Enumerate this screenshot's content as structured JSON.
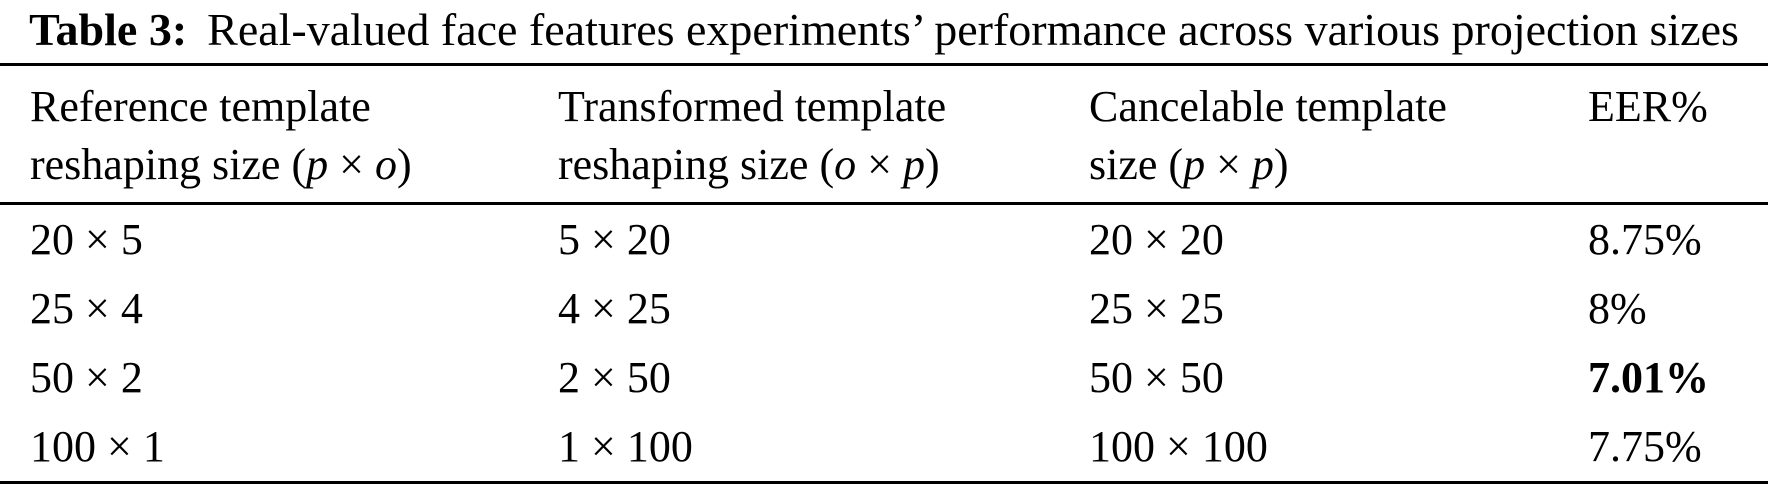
{
  "colors": {
    "text": "#000000",
    "background": "#ffffff",
    "rule": "#000000"
  },
  "caption": {
    "label": "Table 3:",
    "text": "Real-valued face features experiments’ performance across various projection sizes"
  },
  "table": {
    "headers": [
      {
        "line1": "Reference template",
        "line2_pre": "reshaping size (",
        "var1": "p",
        "op": " × ",
        "var2": "o",
        "line2_post": ")"
      },
      {
        "line1": "Transformed template",
        "line2_pre": "reshaping size (",
        "var1": "o",
        "op": " × ",
        "var2": "p",
        "line2_post": ")"
      },
      {
        "line1": "Cancelable template",
        "line2_pre": "size (",
        "var1": "p",
        "op": " × ",
        "var2": "p",
        "line2_post": ")"
      },
      {
        "line1": "EER%"
      }
    ],
    "rows": [
      {
        "cells": [
          "20 × 5",
          "5 × 20",
          "20 × 20",
          "8.75%"
        ],
        "eer_bold": false
      },
      {
        "cells": [
          "25 × 4",
          "4 × 25",
          "25 × 25",
          "8%"
        ],
        "eer_bold": false
      },
      {
        "cells": [
          "50 × 2",
          "2 × 50",
          "50 × 50",
          "7.01%"
        ],
        "eer_bold": true
      },
      {
        "cells": [
          "100 × 1",
          "1 × 100",
          "100 × 100",
          "7.75%"
        ],
        "eer_bold": false
      }
    ]
  }
}
